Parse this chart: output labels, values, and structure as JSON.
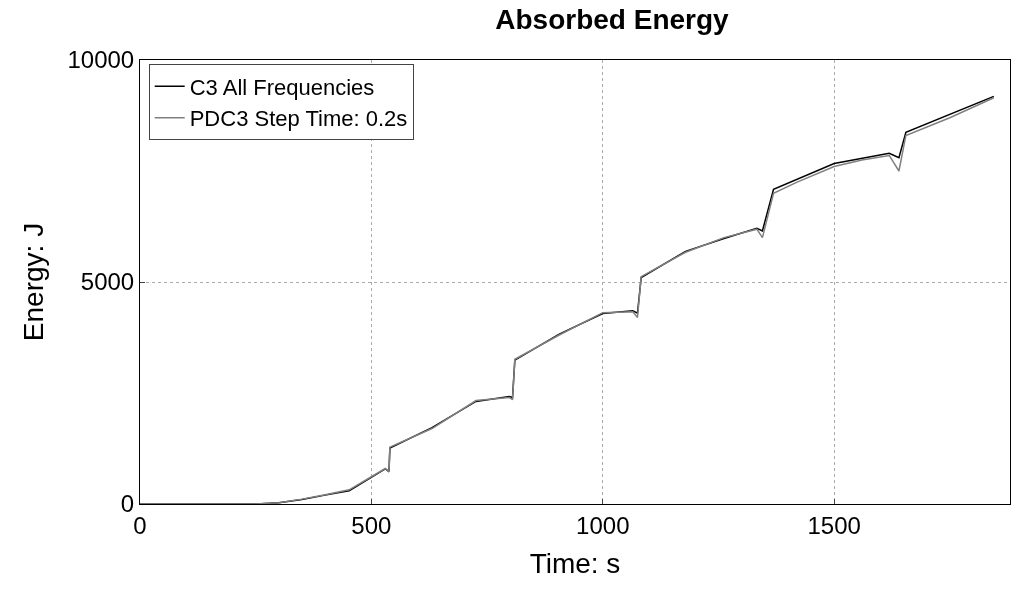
{
  "chart_data": {
    "type": "line",
    "title": "Absorbed Energy",
    "xlabel": "Time: s",
    "ylabel": "Energy: J",
    "xlim": [
      0,
      1880
    ],
    "ylim": [
      0,
      10000
    ],
    "xticks": [
      0,
      500,
      1000,
      1500
    ],
    "yticks": [
      0,
      5000,
      10000
    ],
    "grid": true,
    "legend": "top left",
    "line_style": "solid",
    "marker": "none",
    "series": [
      {
        "name": "C3 All Frequencies",
        "color": "#000000",
        "x": [
          0,
          250,
          300,
          350,
          400,
          452,
          530,
          538,
          540,
          631,
          726,
          798,
          805,
          810,
          905,
          1000,
          1065,
          1075,
          1083,
          1179,
          1262,
          1333,
          1345,
          1369,
          1500,
          1619,
          1640,
          1655,
          1845
        ],
        "values": [
          0,
          0,
          30,
          100,
          200,
          300,
          790,
          730,
          1260,
          1720,
          2310,
          2420,
          2400,
          3240,
          3820,
          4290,
          4350,
          4300,
          5100,
          5690,
          5980,
          6210,
          6150,
          7090,
          7670,
          7900,
          7800,
          8370,
          9180
        ]
      },
      {
        "name": "PDC3 Step Time: 0.2s",
        "color": "#808080",
        "x": [
          0,
          250,
          300,
          350,
          400,
          452,
          530,
          538,
          540,
          631,
          726,
          798,
          805,
          810,
          905,
          1000,
          1065,
          1075,
          1083,
          1179,
          1262,
          1333,
          1345,
          1369,
          1420,
          1500,
          1560,
          1619,
          1640,
          1655,
          1750,
          1845
        ],
        "values": [
          0,
          0,
          30,
          110,
          210,
          320,
          800,
          720,
          1280,
          1700,
          2330,
          2400,
          2350,
          3260,
          3800,
          4310,
          4330,
          4200,
          5120,
          5670,
          6000,
          6190,
          6000,
          7000,
          7250,
          7600,
          7750,
          7850,
          7500,
          8300,
          8700,
          9150
        ]
      }
    ]
  }
}
